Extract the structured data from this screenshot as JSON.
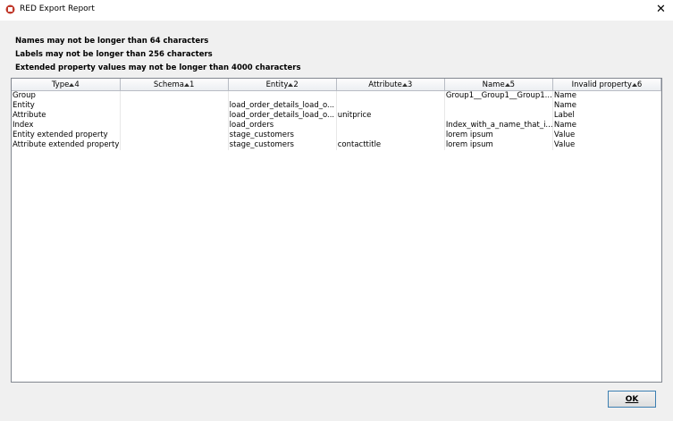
{
  "window": {
    "title": "RED Export Report"
  },
  "messages": [
    "Names may not be longer than 64 characters",
    "Labels may not be longer than 256 characters",
    "Extended property values may not be longer than 4000 characters"
  ],
  "table": {
    "columns": [
      {
        "label": "Type",
        "sort": "4"
      },
      {
        "label": "Schema",
        "sort": "1"
      },
      {
        "label": "Entity",
        "sort": "2"
      },
      {
        "label": "Attribute",
        "sort": "3"
      },
      {
        "label": "Name",
        "sort": "5"
      },
      {
        "label": "Invalid property",
        "sort": "6"
      }
    ],
    "rows": [
      [
        "Group",
        null,
        null,
        null,
        "Group1__Group1__Group1...",
        "Name"
      ],
      [
        "Entity",
        null,
        "load_order_details_load_o...",
        null,
        null,
        "Name"
      ],
      [
        "Attribute",
        null,
        "load_order_details_load_o...",
        "unitprice",
        null,
        "Label"
      ],
      [
        "Index",
        null,
        "load_orders",
        null,
        "Index_with_a_name_that_i...",
        "Name"
      ],
      [
        "Entity extended property",
        null,
        "stage_customers",
        null,
        "lorem ipsum",
        "Value"
      ],
      [
        "Attribute extended property",
        null,
        "stage_customers",
        "contacttitle",
        "lorem ipsum",
        "Value"
      ]
    ]
  },
  "buttons": {
    "ok": "OK"
  }
}
